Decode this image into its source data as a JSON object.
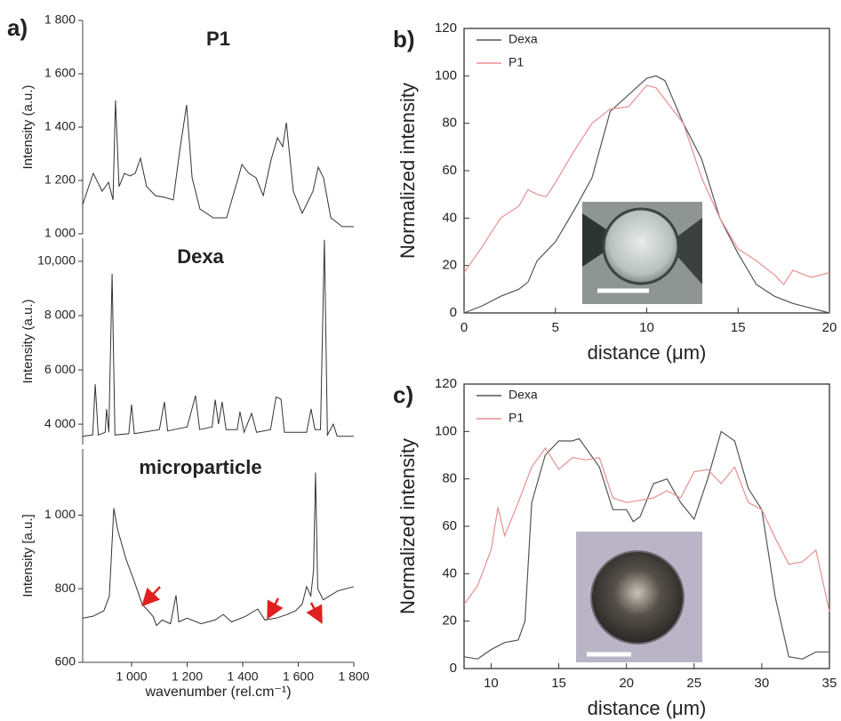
{
  "chart_data": [
    {
      "type": "line",
      "panel_label": "a)",
      "title": "P1",
      "ylabel": "Intensity (a.u.)",
      "xlim": [
        824,
        1800
      ],
      "ylim": [
        1000,
        1800
      ],
      "yticks": [
        {
          "value": 1000,
          "label": "1 000"
        },
        {
          "value": 1200,
          "label": "1 200"
        },
        {
          "value": 1400,
          "label": "1 400"
        },
        {
          "value": 1600,
          "label": "1 600"
        },
        {
          "value": 1800,
          "label": "1 800"
        }
      ],
      "series": [
        {
          "color": "#333333",
          "x": [
            824,
            862,
            894,
            917,
            933,
            942,
            955,
            974,
            994,
            1013,
            1032,
            1054,
            1086,
            1118,
            1150,
            1173,
            1198,
            1218,
            1246,
            1294,
            1342,
            1384,
            1397,
            1422,
            1448,
            1474,
            1502,
            1525,
            1544,
            1557,
            1582,
            1614,
            1653,
            1672,
            1691,
            1717,
            1758,
            1800
          ],
          "values": [
            1110,
            1227,
            1160,
            1193,
            1127,
            1500,
            1177,
            1227,
            1217,
            1227,
            1283,
            1177,
            1143,
            1137,
            1127,
            1310,
            1483,
            1210,
            1093,
            1060,
            1060,
            1210,
            1260,
            1227,
            1210,
            1143,
            1277,
            1360,
            1327,
            1417,
            1160,
            1077,
            1160,
            1250,
            1210,
            1060,
            1027,
            1027
          ]
        }
      ]
    },
    {
      "type": "line",
      "title": "Dexa",
      "ylabel": "Intensity (a.u.)",
      "xlim": [
        824,
        1800
      ],
      "ylim": [
        3250,
        10850
      ],
      "yticks": [
        {
          "value": 4000,
          "label": "4 000"
        },
        {
          "value": 6000,
          "label": "6 000"
        },
        {
          "value": 8000,
          "label": "8 000"
        },
        {
          "value": 10000,
          "label": "10,000"
        }
      ],
      "series": [
        {
          "color": "#333333",
          "x": [
            824,
            860,
            869,
            880,
            905,
            910,
            918,
            930,
            940,
            990,
            1000,
            1010,
            1100,
            1118,
            1130,
            1200,
            1230,
            1245,
            1290,
            1301,
            1313,
            1326,
            1340,
            1380,
            1390,
            1405,
            1432,
            1450,
            1500,
            1520,
            1538,
            1550,
            1630,
            1646,
            1660,
            1680,
            1694,
            1705,
            1726,
            1740,
            1800
          ],
          "values": [
            3550,
            3600,
            5475,
            3600,
            3700,
            4560,
            3700,
            9540,
            3600,
            3650,
            4720,
            3650,
            3800,
            4820,
            3750,
            3900,
            5050,
            3800,
            3900,
            4900,
            4000,
            4820,
            3800,
            3800,
            4460,
            3700,
            4400,
            3700,
            3800,
            5000,
            4920,
            3700,
            3700,
            4560,
            3800,
            3800,
            10790,
            3600,
            4000,
            3550,
            3550
          ]
        }
      ]
    },
    {
      "type": "line",
      "title": "microparticle",
      "ylabel": "Intensity [a.u.]",
      "xlabel": "wavenumber (rel.cm⁻¹)",
      "xlim": [
        824,
        1800
      ],
      "ylim": [
        600,
        1180
      ],
      "xticks": [
        {
          "value": 1000,
          "label": "1 000"
        },
        {
          "value": 1200,
          "label": "1 200"
        },
        {
          "value": 1400,
          "label": "1 400"
        },
        {
          "value": 1600,
          "label": "1 600"
        },
        {
          "value": 1800,
          "label": "1 800"
        }
      ],
      "yticks": [
        600,
        800,
        {
          "value": 1000,
          "label": "1 000"
        }
      ],
      "series": [
        {
          "color": "#333333",
          "x": [
            824,
            860,
            900,
            920,
            936,
            950,
            980,
            1010,
            1038,
            1060,
            1077,
            1090,
            1110,
            1140,
            1160,
            1170,
            1200,
            1250,
            1300,
            1330,
            1360,
            1410,
            1454,
            1480,
            1520,
            1560,
            1590,
            1614,
            1630,
            1645,
            1655,
            1662,
            1670,
            1690,
            1742,
            1800
          ],
          "values": [
            720,
            725,
            740,
            780,
            1019,
            960,
            880,
            820,
            758,
            740,
            725,
            700,
            715,
            705,
            782,
            710,
            720,
            705,
            715,
            730,
            710,
            725,
            745,
            715,
            720,
            730,
            740,
            758,
            806,
            780,
            850,
            1116,
            800,
            770,
            794,
            806
          ]
        }
      ]
    },
    {
      "type": "line",
      "panel_label": "b)",
      "xlabel": "distance (μm)",
      "ylabel": "Normalized intensity",
      "xlim": [
        0,
        20
      ],
      "ylim": [
        0,
        120
      ],
      "xticks": [
        0,
        5,
        10,
        15,
        20
      ],
      "yticks": [
        0,
        20,
        40,
        60,
        80,
        100,
        120
      ],
      "legend": "upper left",
      "series": [
        {
          "name": "Dexa",
          "color": "#555555",
          "x": [
            0,
            1,
            2,
            3,
            3.5,
            4,
            5,
            6,
            7,
            8,
            9,
            10,
            10.5,
            11,
            12,
            13,
            14,
            15,
            16,
            17,
            18,
            19,
            20
          ],
          "values": [
            0,
            3,
            7,
            10,
            13,
            22,
            30,
            43,
            57,
            85,
            92,
            99,
            100,
            98,
            80,
            65,
            40,
            25,
            12,
            7,
            4,
            2,
            0
          ]
        },
        {
          "name": "P1",
          "color": "#e8908f",
          "x": [
            0,
            1,
            2,
            3,
            3.5,
            4,
            4.5,
            5,
            6,
            7,
            8,
            9,
            10,
            10.5,
            11,
            12,
            13,
            14,
            15,
            16,
            17,
            17.5,
            18,
            19,
            20
          ],
          "values": [
            17,
            28,
            40,
            45,
            52,
            50,
            49,
            55,
            68,
            80,
            86,
            87,
            96,
            95,
            90,
            80,
            57,
            40,
            27,
            22,
            16,
            12,
            18,
            15,
            17
          ]
        }
      ]
    },
    {
      "type": "line",
      "panel_label": "c)",
      "xlabel": "distance (μm)",
      "ylabel": "Normalized intensity",
      "xlim": [
        8,
        35
      ],
      "ylim": [
        0,
        120
      ],
      "xticks": [
        10,
        15,
        20,
        25,
        30,
        35
      ],
      "yticks": [
        0,
        20,
        40,
        60,
        80,
        100,
        120
      ],
      "legend": "upper left",
      "series": [
        {
          "name": "Dexa",
          "color": "#555555",
          "x": [
            8,
            9,
            10,
            11,
            12,
            12.5,
            13,
            14,
            15,
            16,
            16.5,
            17,
            18,
            19,
            20,
            20.5,
            21,
            22,
            23,
            24,
            25,
            26,
            27,
            28,
            29,
            30,
            31,
            32,
            33,
            34,
            35
          ],
          "values": [
            5,
            4,
            8,
            11,
            12,
            20,
            70,
            90,
            96,
            96,
            97,
            93,
            85,
            67,
            67,
            62,
            64,
            78,
            80,
            70,
            63,
            80,
            100,
            96,
            76,
            67,
            30,
            5,
            4,
            7,
            7
          ]
        },
        {
          "name": "P1",
          "color": "#e8908f",
          "x": [
            8,
            9,
            10,
            10.5,
            11,
            12,
            13,
            14,
            15,
            16,
            17,
            18,
            19,
            20,
            21,
            22,
            23,
            24,
            25,
            26,
            27,
            28,
            29,
            30,
            31,
            32,
            33,
            34,
            35
          ],
          "values": [
            27,
            35,
            50,
            68,
            56,
            70,
            85,
            93,
            84,
            89,
            88,
            89,
            72,
            70,
            71,
            72,
            75,
            72,
            83,
            84,
            78,
            85,
            70,
            67,
            55,
            44,
            45,
            50,
            24
          ]
        }
      ]
    }
  ]
}
